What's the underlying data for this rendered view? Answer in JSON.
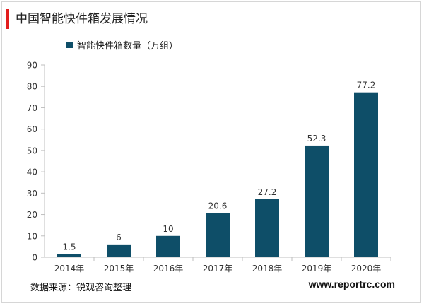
{
  "header": {
    "title": "中国智能快件箱发展情况"
  },
  "footer": {
    "source": "数据来源：锐观咨询整理",
    "website": "www.reportrc.com"
  },
  "colors": {
    "bar": "#0e4e68",
    "accent": "#e21d1d",
    "axis": "#bfbfbf"
  },
  "chart_data": {
    "type": "bar",
    "title": "",
    "xlabel": "",
    "ylabel": "",
    "categories": [
      "2014年",
      "2015年",
      "2016年",
      "2017年",
      "2018年",
      "2019年",
      "2020年"
    ],
    "series": [
      {
        "name": "智能快件箱数量（万组）",
        "values": [
          1.5,
          6,
          10,
          20.6,
          27.2,
          52.3,
          77.2
        ]
      }
    ],
    "data_labels": [
      "1.5",
      "6",
      "10",
      "20.6",
      "27.2",
      "52.3",
      "77.2"
    ],
    "ylim": [
      0,
      90
    ],
    "yticks": [
      0,
      10,
      20,
      30,
      40,
      50,
      60,
      70,
      80,
      90
    ],
    "grid": false,
    "legend": "top-left"
  }
}
